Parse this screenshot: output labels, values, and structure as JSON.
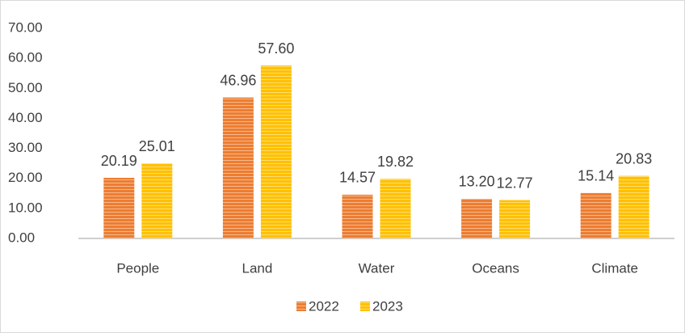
{
  "chart_data": {
    "type": "bar",
    "categories": [
      "People",
      "Land",
      "Water",
      "Oceans",
      "Climate"
    ],
    "series": [
      {
        "name": "2022",
        "color": "#ed7d31",
        "values": [
          20.19,
          46.96,
          14.57,
          13.2,
          15.14
        ],
        "value_labels": [
          "20.19",
          "46.96",
          "14.57",
          "13.20",
          "15.14"
        ]
      },
      {
        "name": "2023",
        "color": "#ffc000",
        "values": [
          25.01,
          57.6,
          19.82,
          12.77,
          20.83
        ],
        "value_labels": [
          "25.01",
          "57.60",
          "19.82",
          "12.77",
          "20.83"
        ]
      }
    ],
    "ylim": [
      0,
      70
    ],
    "yticks": [
      {
        "value": 0,
        "label": "0.00"
      },
      {
        "value": 10,
        "label": "10.00"
      },
      {
        "value": 20,
        "label": "20.00"
      },
      {
        "value": 30,
        "label": "30.00"
      },
      {
        "value": 40,
        "label": "40.00"
      },
      {
        "value": 50,
        "label": "50.00"
      },
      {
        "value": 60,
        "label": "60.00"
      },
      {
        "value": 70,
        "label": "70.00"
      }
    ],
    "legend": "bottom"
  }
}
